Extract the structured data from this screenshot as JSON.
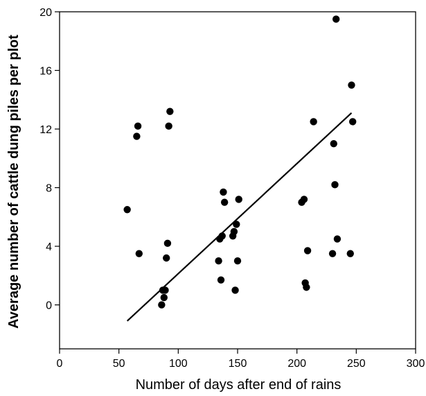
{
  "chart_data": {
    "type": "scatter",
    "title": "",
    "xlabel": "Number of days after end of rains",
    "ylabel": "Average number of cattle dung piles per plot",
    "xlim": [
      0,
      300
    ],
    "ylim": [
      -3,
      20
    ],
    "xticks": [
      0,
      50,
      100,
      150,
      200,
      250,
      300
    ],
    "yticks": [
      0,
      4,
      8,
      12,
      16,
      20
    ],
    "grid": false,
    "legend": "none",
    "points": [
      {
        "x": 57,
        "y": 6.5
      },
      {
        "x": 65,
        "y": 11.5
      },
      {
        "x": 66,
        "y": 12.2
      },
      {
        "x": 67,
        "y": 3.5
      },
      {
        "x": 86,
        "y": 0.0
      },
      {
        "x": 87,
        "y": 1.0
      },
      {
        "x": 88,
        "y": 0.5
      },
      {
        "x": 89,
        "y": 1.0
      },
      {
        "x": 90,
        "y": 3.2
      },
      {
        "x": 91,
        "y": 4.2
      },
      {
        "x": 92,
        "y": 12.2
      },
      {
        "x": 93,
        "y": 13.2
      },
      {
        "x": 134,
        "y": 3.0
      },
      {
        "x": 135,
        "y": 4.5
      },
      {
        "x": 136,
        "y": 1.7
      },
      {
        "x": 137,
        "y": 4.7
      },
      {
        "x": 138,
        "y": 7.7
      },
      {
        "x": 139,
        "y": 7.0
      },
      {
        "x": 146,
        "y": 4.7
      },
      {
        "x": 147,
        "y": 5.0
      },
      {
        "x": 148,
        "y": 1.0
      },
      {
        "x": 149,
        "y": 5.5
      },
      {
        "x": 150,
        "y": 3.0
      },
      {
        "x": 151,
        "y": 7.2
      },
      {
        "x": 204,
        "y": 7.0
      },
      {
        "x": 206,
        "y": 7.2
      },
      {
        "x": 207,
        "y": 1.5
      },
      {
        "x": 208,
        "y": 1.2
      },
      {
        "x": 209,
        "y": 3.7
      },
      {
        "x": 214,
        "y": 12.5
      },
      {
        "x": 230,
        "y": 3.5
      },
      {
        "x": 231,
        "y": 11.0
      },
      {
        "x": 232,
        "y": 8.2
      },
      {
        "x": 233,
        "y": 19.5
      },
      {
        "x": 234,
        "y": 4.5
      },
      {
        "x": 245,
        "y": 3.5
      },
      {
        "x": 246,
        "y": 15.0
      },
      {
        "x": 247,
        "y": 12.5
      }
    ],
    "trendline": {
      "x": [
        57,
        246
      ],
      "y": [
        -1.1,
        13.1
      ]
    }
  }
}
